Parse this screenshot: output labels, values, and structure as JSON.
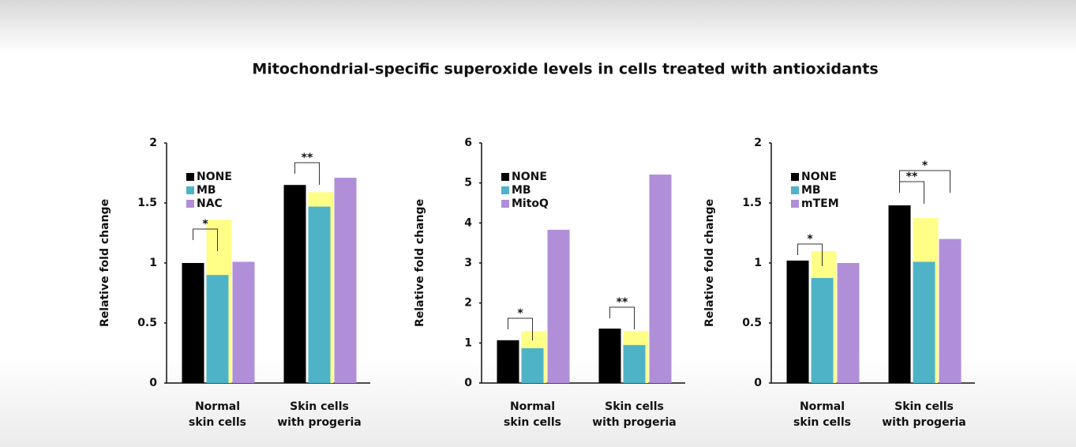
{
  "title": "Mitochondrial-specific superoxide levels in cells treated with antioxidants",
  "chart_data": [
    {
      "type": "bar",
      "ylabel": "Relative fold change",
      "categories": [
        [
          "Normal",
          "skin cells"
        ],
        [
          "Skin cells",
          "with progeria"
        ]
      ],
      "series": [
        {
          "name": "NONE",
          "color": "#000000",
          "values": [
            1.0,
            1.65
          ]
        },
        {
          "name": "MB",
          "color": "#4fb3c8",
          "values": [
            0.9,
            1.47
          ]
        },
        {
          "name": "NAC",
          "color": "#b08fd8",
          "values": [
            1.01,
            1.71
          ]
        }
      ],
      "highlight": {
        "color": "#ffff88",
        "values": [
          1.36,
          1.59
        ]
      },
      "annotations": [
        "*",
        "**"
      ],
      "ylim": [
        0,
        2
      ],
      "yticks": [
        0,
        0.5,
        1,
        1.5,
        2
      ]
    },
    {
      "type": "bar",
      "ylabel": "Relative fold change",
      "categories": [
        [
          "Normal",
          "skin cells"
        ],
        [
          "Skin cells",
          "with progeria"
        ]
      ],
      "series": [
        {
          "name": "NONE",
          "color": "#000000",
          "values": [
            1.07,
            1.36
          ]
        },
        {
          "name": "MB",
          "color": "#4fb3c8",
          "values": [
            0.87,
            0.95
          ]
        },
        {
          "name": "MitoQ",
          "color": "#b08fd8",
          "values": [
            3.83,
            5.21
          ]
        }
      ],
      "highlight": {
        "color": "#ffff88",
        "values": [
          1.3,
          1.3
        ]
      },
      "annotations": [
        "*",
        "**"
      ],
      "ylim": [
        0,
        6
      ],
      "yticks": [
        0,
        1,
        2,
        3,
        4,
        5,
        6
      ]
    },
    {
      "type": "bar",
      "ylabel": "Relative fold change",
      "categories": [
        [
          "Normal",
          "skin cells"
        ],
        [
          "Skin cells",
          "with progeria"
        ]
      ],
      "series": [
        {
          "name": "NONE",
          "color": "#000000",
          "values": [
            1.02,
            1.48
          ]
        },
        {
          "name": "MB",
          "color": "#4fb3c8",
          "values": [
            0.875,
            1.01
          ]
        },
        {
          "name": "mTEM",
          "color": "#b08fd8",
          "values": [
            1.0,
            1.2
          ]
        }
      ],
      "highlight": {
        "color": "#ffff88",
        "values": [
          1.1,
          1.375
        ]
      },
      "annotations": [
        "*",
        "**",
        "*"
      ],
      "ylim": [
        0,
        2
      ],
      "yticks": [
        0,
        0.5,
        1,
        1.5,
        2
      ]
    }
  ]
}
